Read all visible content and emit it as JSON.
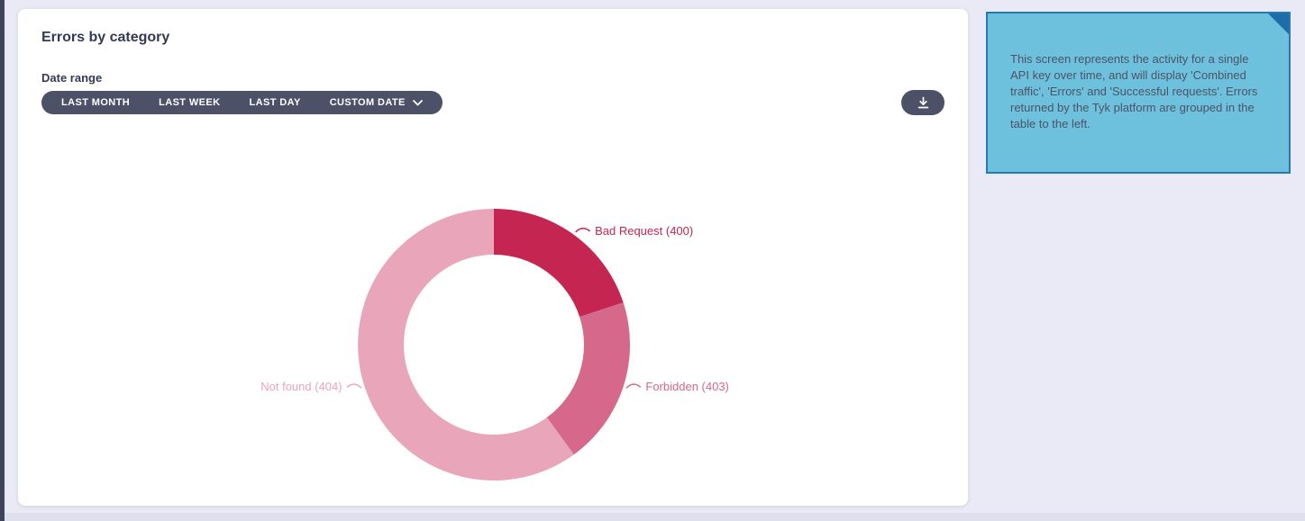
{
  "page": {
    "background_color": "#e9eaf5",
    "sidebar_strip_color": "#3f435c"
  },
  "card": {
    "title": "Errors by category",
    "date_range_label": "Date range",
    "date_range_buttons": [
      {
        "label": "LAST MONTH"
      },
      {
        "label": "LAST WEEK"
      },
      {
        "label": "LAST DAY"
      },
      {
        "label": "CUSTOM DATE",
        "has_chevron": true
      }
    ],
    "accent_color": "#4d5168"
  },
  "info_panel": {
    "text": "This screen represents the activity for a single API key over time, and will display 'Combined traffic', 'Errors' and 'Successful requests'. Errors returned by the Tyk platform are grouped in the table to the left.",
    "background_color": "#6ec1dd",
    "border_color": "#2679b3",
    "fold_color": "#1d6dab"
  },
  "chart_data": {
    "type": "pie",
    "variant": "donut",
    "title": "Errors by category",
    "slices": [
      {
        "label": "Bad Request (400)",
        "percent": 20,
        "color": "#c42551"
      },
      {
        "label": "Forbidden (403)",
        "percent": 20,
        "color": "#d5688b"
      },
      {
        "label": "Not found (404)",
        "percent": 60,
        "color": "#e9a6ba"
      }
    ],
    "start_angle_deg": 0,
    "direction": "clockwise",
    "inner_radius_ratio": 0.66,
    "legend_position": "none",
    "labels": "outside-with-leader-lines"
  }
}
